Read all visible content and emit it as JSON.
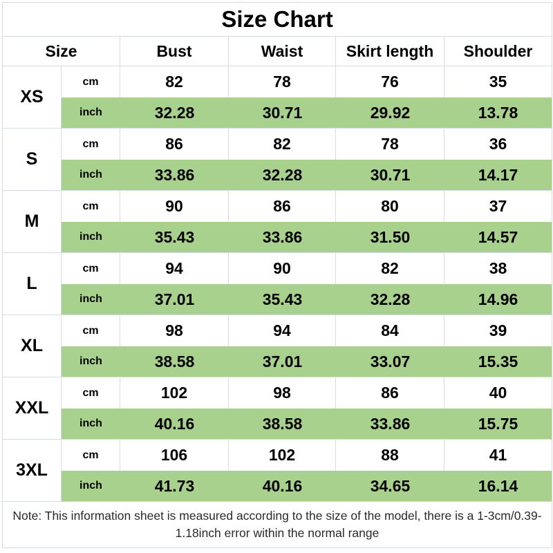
{
  "chart_data": {
    "type": "table",
    "title": "Size Chart",
    "columns": [
      "Size",
      "Bust",
      "Waist",
      "Skirt length",
      "Shoulder"
    ],
    "units": [
      "cm",
      "inch"
    ],
    "sizes": [
      {
        "label": "XS",
        "cm": [
          "82",
          "78",
          "76",
          "35"
        ],
        "inch": [
          "32.28",
          "30.71",
          "29.92",
          "13.78"
        ]
      },
      {
        "label": "S",
        "cm": [
          "86",
          "82",
          "78",
          "36"
        ],
        "inch": [
          "33.86",
          "32.28",
          "30.71",
          "14.17"
        ]
      },
      {
        "label": "M",
        "cm": [
          "90",
          "86",
          "80",
          "37"
        ],
        "inch": [
          "35.43",
          "33.86",
          "31.50",
          "14.57"
        ]
      },
      {
        "label": "L",
        "cm": [
          "94",
          "90",
          "82",
          "38"
        ],
        "inch": [
          "37.01",
          "35.43",
          "32.28",
          "14.96"
        ]
      },
      {
        "label": "XL",
        "cm": [
          "98",
          "94",
          "84",
          "39"
        ],
        "inch": [
          "38.58",
          "37.01",
          "33.07",
          "15.35"
        ]
      },
      {
        "label": "XXL",
        "cm": [
          "102",
          "98",
          "86",
          "40"
        ],
        "inch": [
          "40.16",
          "38.58",
          "33.86",
          "15.75"
        ]
      },
      {
        "label": "3XL",
        "cm": [
          "106",
          "102",
          "88",
          "41"
        ],
        "inch": [
          "41.73",
          "40.16",
          "34.65",
          "16.14"
        ]
      }
    ],
    "note": "Note: This information sheet is measured according to the size of the model, there is a 1-3cm/0.39-1.18inch error within the normal range",
    "layout_hints": {
      "highlight_rows": "inch",
      "grid": "on"
    }
  },
  "colors": {
    "highlight_green": "#a9d18e",
    "border_gray": "#d6dce4",
    "text": "#000000",
    "background": "#ffffff"
  }
}
